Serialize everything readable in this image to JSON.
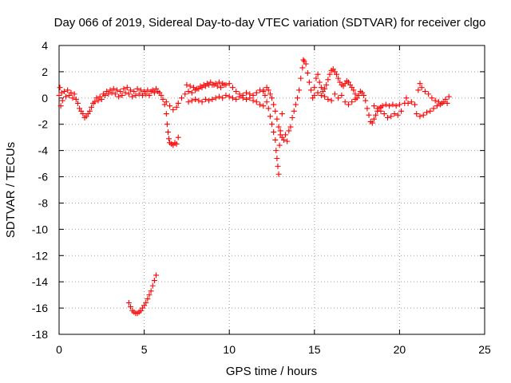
{
  "chart_data": {
    "type": "scatter",
    "title": "Day 066 of 2019, Sidereal Day-to-day VTEC variation (SDTVAR) for receiver clgo",
    "xlabel": "GPS time / hours",
    "ylabel": "SDTVAR / TECUs",
    "xlim": [
      0,
      25
    ],
    "ylim": [
      -18,
      4
    ],
    "xticks": [
      0,
      5,
      10,
      15,
      20,
      25
    ],
    "yticks": [
      -18,
      -16,
      -14,
      -12,
      -10,
      -8,
      -6,
      -4,
      -2,
      0,
      2,
      4
    ],
    "grid": true,
    "marker": "+",
    "series": [
      {
        "name": "SDTVAR",
        "color": "#ff0000",
        "points": [
          [
            0.0,
            0.2
          ],
          [
            0.05,
            0.8
          ],
          [
            0.1,
            -0.6
          ],
          [
            0.15,
            0.4
          ],
          [
            0.2,
            -0.2
          ],
          [
            0.3,
            0.5
          ],
          [
            0.4,
            0.1
          ],
          [
            0.5,
            0.6
          ],
          [
            0.6,
            0.2
          ],
          [
            0.7,
            0.4
          ],
          [
            0.8,
            0.0
          ],
          [
            0.9,
            0.3
          ],
          [
            1.0,
            -0.1
          ],
          [
            1.1,
            -0.4
          ],
          [
            1.2,
            -0.8
          ],
          [
            1.3,
            -1.0
          ],
          [
            1.4,
            -1.2
          ],
          [
            1.5,
            -1.5
          ],
          [
            1.6,
            -1.4
          ],
          [
            1.7,
            -1.2
          ],
          [
            1.8,
            -1.0
          ],
          [
            1.9,
            -0.7
          ],
          [
            2.0,
            -0.4
          ],
          [
            2.1,
            -0.3
          ],
          [
            2.2,
            0.0
          ],
          [
            2.3,
            -0.2
          ],
          [
            2.4,
            0.1
          ],
          [
            2.5,
            -0.1
          ],
          [
            2.6,
            0.3
          ],
          [
            2.7,
            0.2
          ],
          [
            2.8,
            0.5
          ],
          [
            2.9,
            0.3
          ],
          [
            3.0,
            0.6
          ],
          [
            3.1,
            0.4
          ],
          [
            3.2,
            0.7
          ],
          [
            3.3,
            0.3
          ],
          [
            3.4,
            0.6
          ],
          [
            3.5,
            0.1
          ],
          [
            3.6,
            0.5
          ],
          [
            3.7,
            0.2
          ],
          [
            3.8,
            0.7
          ],
          [
            3.9,
            0.4
          ],
          [
            4.0,
            0.8
          ],
          [
            4.1,
            0.3
          ],
          [
            4.2,
            0.6
          ],
          [
            4.3,
            0.1
          ],
          [
            4.4,
            0.5
          ],
          [
            4.5,
            0.2
          ],
          [
            4.6,
            0.7
          ],
          [
            4.7,
            0.3
          ],
          [
            4.8,
            0.6
          ],
          [
            4.9,
            0.2
          ],
          [
            5.0,
            0.5
          ],
          [
            5.1,
            0.3
          ],
          [
            5.2,
            0.6
          ],
          [
            5.3,
            0.2
          ],
          [
            5.4,
            0.5
          ],
          [
            5.5,
            0.6
          ],
          [
            5.6,
            0.4
          ],
          [
            5.7,
            0.7
          ],
          [
            5.8,
            0.5
          ],
          [
            5.9,
            0.4
          ],
          [
            6.0,
            0.2
          ],
          [
            6.1,
            -0.1
          ],
          [
            6.2,
            -0.5
          ],
          [
            6.3,
            -1.2
          ],
          [
            6.35,
            -2.0
          ],
          [
            6.4,
            -2.6
          ],
          [
            6.45,
            -3.1
          ],
          [
            6.5,
            -3.4
          ],
          [
            6.6,
            -3.5
          ],
          [
            6.7,
            -3.6
          ],
          [
            6.8,
            -3.4
          ],
          [
            6.9,
            -3.5
          ],
          [
            7.0,
            -3.0
          ],
          [
            6.3,
            -0.3
          ],
          [
            6.5,
            -0.6
          ],
          [
            6.7,
            -0.9
          ],
          [
            6.9,
            -0.7
          ],
          [
            7.0,
            -0.4
          ],
          [
            7.2,
            0.0
          ],
          [
            7.4,
            0.3
          ],
          [
            7.6,
            0.5
          ],
          [
            7.8,
            0.4
          ],
          [
            8.0,
            0.6
          ],
          [
            8.2,
            0.7
          ],
          [
            8.4,
            0.8
          ],
          [
            8.6,
            0.9
          ],
          [
            8.8,
            1.0
          ],
          [
            9.0,
            1.0
          ],
          [
            9.2,
            1.1
          ],
          [
            9.4,
            1.2
          ],
          [
            9.6,
            1.1
          ],
          [
            9.8,
            1.0
          ],
          [
            10.0,
            1.1
          ],
          [
            10.2,
            0.8
          ],
          [
            10.4,
            0.5
          ],
          [
            10.6,
            0.3
          ],
          [
            10.8,
            0.2
          ],
          [
            11.0,
            0.4
          ],
          [
            11.2,
            0.3
          ],
          [
            11.4,
            0.2
          ],
          [
            11.6,
            0.4
          ],
          [
            11.8,
            0.6
          ],
          [
            12.0,
            0.5
          ],
          [
            7.6,
            -0.3
          ],
          [
            7.8,
            -0.2
          ],
          [
            8.0,
            -0.1
          ],
          [
            8.2,
            -0.2
          ],
          [
            8.4,
            -0.3
          ],
          [
            8.6,
            -0.1
          ],
          [
            8.8,
            -0.2
          ],
          [
            9.0,
            -0.1
          ],
          [
            9.2,
            0.0
          ],
          [
            9.4,
            0.1
          ],
          [
            9.6,
            0.0
          ],
          [
            9.8,
            0.2
          ],
          [
            10.0,
            0.1
          ],
          [
            10.2,
            0.0
          ],
          [
            10.4,
            -0.1
          ],
          [
            10.6,
            0.1
          ],
          [
            10.8,
            0.0
          ],
          [
            11.0,
            -0.1
          ],
          [
            11.2,
            0.0
          ],
          [
            11.4,
            -0.2
          ],
          [
            11.6,
            -0.3
          ],
          [
            11.8,
            -0.5
          ],
          [
            12.0,
            -0.6
          ],
          [
            7.5,
            1.0
          ],
          [
            7.7,
            0.9
          ],
          [
            7.9,
            0.8
          ],
          [
            8.1,
            0.7
          ],
          [
            8.3,
            0.9
          ],
          [
            8.5,
            1.0
          ],
          [
            8.7,
            1.1
          ],
          [
            8.9,
            1.2
          ],
          [
            9.1,
            1.0
          ],
          [
            9.3,
            0.9
          ],
          [
            9.5,
            0.8
          ],
          [
            9.7,
            1.0
          ],
          [
            12.0,
            0.6
          ],
          [
            12.1,
            0.2
          ],
          [
            12.2,
            -0.3
          ],
          [
            12.3,
            -0.8
          ],
          [
            12.4,
            -1.4
          ],
          [
            12.5,
            -2.0
          ],
          [
            12.6,
            -2.6
          ],
          [
            12.7,
            -3.2
          ],
          [
            12.75,
            -4.0
          ],
          [
            12.8,
            -4.6
          ],
          [
            12.85,
            -5.2
          ],
          [
            12.9,
            -5.8
          ],
          [
            12.95,
            -3.6
          ],
          [
            13.0,
            -2.5
          ],
          [
            13.1,
            -1.2
          ],
          [
            12.2,
            0.8
          ],
          [
            12.3,
            0.6
          ],
          [
            12.4,
            0.3
          ],
          [
            12.5,
            0.0
          ],
          [
            12.6,
            -0.5
          ],
          [
            12.7,
            -1.0
          ],
          [
            12.8,
            -1.6
          ],
          [
            12.9,
            -2.2
          ],
          [
            13.0,
            -2.8
          ],
          [
            13.1,
            -3.0
          ],
          [
            13.2,
            -3.2
          ],
          [
            13.3,
            -2.8
          ],
          [
            13.4,
            -3.3
          ],
          [
            13.5,
            -2.5
          ],
          [
            13.6,
            -2.2
          ],
          [
            13.7,
            -1.5
          ],
          [
            13.8,
            -1.0
          ],
          [
            13.9,
            -0.5
          ],
          [
            14.0,
            0.0
          ],
          [
            14.1,
            0.6
          ],
          [
            14.2,
            1.5
          ],
          [
            14.3,
            2.3
          ],
          [
            14.35,
            2.9
          ],
          [
            14.4,
            2.8
          ],
          [
            14.5,
            2.6
          ],
          [
            14.6,
            1.9
          ],
          [
            14.7,
            1.2
          ],
          [
            14.8,
            0.6
          ],
          [
            14.9,
            0.0
          ],
          [
            15.0,
            0.8
          ],
          [
            15.1,
            1.5
          ],
          [
            15.2,
            1.8
          ],
          [
            15.3,
            1.2
          ],
          [
            15.4,
            0.8
          ],
          [
            15.5,
            0.5
          ],
          [
            15.6,
            0.7
          ],
          [
            15.7,
            1.0
          ],
          [
            15.8,
            1.4
          ],
          [
            15.9,
            1.8
          ],
          [
            16.0,
            2.1
          ],
          [
            16.1,
            2.2
          ],
          [
            16.2,
            2.0
          ],
          [
            16.3,
            1.8
          ],
          [
            16.4,
            1.5
          ],
          [
            16.5,
            1.2
          ],
          [
            16.6,
            1.0
          ],
          [
            16.7,
            0.9
          ],
          [
            16.8,
            1.1
          ],
          [
            16.9,
            1.3
          ],
          [
            17.0,
            1.2
          ],
          [
            17.1,
            1.0
          ],
          [
            17.2,
            0.8
          ],
          [
            17.3,
            0.6
          ],
          [
            17.4,
            0.3
          ],
          [
            17.5,
            0.0
          ],
          [
            17.6,
            0.2
          ],
          [
            17.7,
            0.5
          ],
          [
            17.8,
            0.4
          ],
          [
            17.9,
            0.2
          ],
          [
            18.0,
            -0.2
          ],
          [
            18.1,
            -0.8
          ],
          [
            18.2,
            -1.3
          ],
          [
            18.3,
            -1.8
          ],
          [
            18.4,
            -1.9
          ],
          [
            18.5,
            -1.6
          ],
          [
            18.6,
            -1.3
          ],
          [
            18.7,
            -1.0
          ],
          [
            18.8,
            -0.8
          ],
          [
            18.9,
            -0.7
          ],
          [
            19.0,
            -0.6
          ],
          [
            19.2,
            -0.5
          ],
          [
            19.4,
            -0.6
          ],
          [
            19.6,
            -0.5
          ],
          [
            19.8,
            -0.6
          ],
          [
            20.0,
            -0.5
          ],
          [
            18.5,
            -0.6
          ],
          [
            18.7,
            -0.8
          ],
          [
            18.9,
            -1.0
          ],
          [
            19.1,
            -1.2
          ],
          [
            19.3,
            -1.5
          ],
          [
            19.5,
            -1.4
          ],
          [
            19.7,
            -1.2
          ],
          [
            19.9,
            -1.3
          ],
          [
            20.1,
            -1.0
          ],
          [
            20.3,
            -0.4
          ],
          [
            20.4,
            0.0
          ],
          [
            20.5,
            -0.4
          ],
          [
            20.7,
            -0.3
          ],
          [
            20.9,
            -0.5
          ],
          [
            21.1,
            0.6
          ],
          [
            21.2,
            1.1
          ],
          [
            21.3,
            0.8
          ],
          [
            21.5,
            0.5
          ],
          [
            21.7,
            0.3
          ],
          [
            21.9,
            0.0
          ],
          [
            22.1,
            -0.2
          ],
          [
            22.3,
            -0.3
          ],
          [
            22.5,
            -0.4
          ],
          [
            22.7,
            -0.1
          ],
          [
            22.9,
            0.1
          ],
          [
            21.0,
            -1.2
          ],
          [
            21.2,
            -1.4
          ],
          [
            21.4,
            -1.3
          ],
          [
            21.6,
            -1.1
          ],
          [
            21.8,
            -1.0
          ],
          [
            22.0,
            -0.8
          ],
          [
            22.2,
            -0.6
          ],
          [
            22.4,
            -0.5
          ],
          [
            22.6,
            -0.3
          ],
          [
            22.8,
            -0.4
          ],
          [
            15.0,
            0.2
          ],
          [
            15.2,
            0.4
          ],
          [
            15.4,
            0.2
          ],
          [
            15.6,
            0.1
          ],
          [
            15.8,
            -0.1
          ],
          [
            16.0,
            -0.2
          ],
          [
            16.2,
            0.3
          ],
          [
            16.4,
            0.0
          ],
          [
            16.6,
            0.2
          ],
          [
            16.8,
            -0.3
          ],
          [
            17.0,
            -0.5
          ],
          [
            17.2,
            -0.3
          ],
          [
            17.4,
            -0.1
          ],
          [
            4.1,
            -15.6
          ],
          [
            4.2,
            -15.9
          ],
          [
            4.3,
            -16.2
          ],
          [
            4.4,
            -16.3
          ],
          [
            4.5,
            -16.4
          ],
          [
            4.6,
            -16.4
          ],
          [
            4.7,
            -16.3
          ],
          [
            4.8,
            -16.2
          ],
          [
            4.9,
            -16.0
          ],
          [
            5.0,
            -15.8
          ],
          [
            5.1,
            -15.6
          ],
          [
            5.2,
            -15.3
          ],
          [
            5.3,
            -15.0
          ],
          [
            5.4,
            -14.7
          ],
          [
            5.5,
            -14.3
          ],
          [
            5.6,
            -13.9
          ],
          [
            5.7,
            -13.5
          ]
        ]
      }
    ]
  }
}
